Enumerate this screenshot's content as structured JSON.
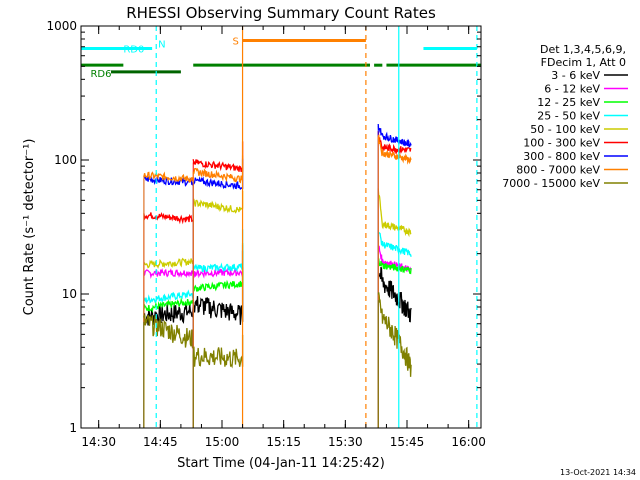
{
  "chart_data": {
    "type": "line",
    "title": "RHESSI Observing Summary Count Rates",
    "xlabel": "Start Time (04-Jan-11 14:25:42)",
    "ylabel": "Count Rate (s⁻¹ detector⁻¹)",
    "ylim": [
      1,
      1000
    ],
    "y_scale": "log",
    "xlim": [
      "14:25:42",
      "16:03:00"
    ],
    "x_ticks": [
      "14:30",
      "14:45",
      "15:00",
      "15:15",
      "15:30",
      "15:45",
      "16:00"
    ],
    "y_ticks": [
      "1",
      "10",
      "100",
      "1000"
    ],
    "footer": "13-Oct-2021 14:34",
    "legend": {
      "placement": "right",
      "header": [
        "Det 1,3,4,5,6,9,",
        "FDecim 1, Att 0"
      ],
      "entries": [
        {
          "label": "3 - 6 keV",
          "color": "#000000"
        },
        {
          "label": "6 - 12 keV",
          "color": "#ff00ff"
        },
        {
          "label": "12 - 25 keV",
          "color": "#00ff00"
        },
        {
          "label": "25 - 50 keV",
          "color": "#00ffff"
        },
        {
          "label": "50 - 100 keV",
          "color": "#cccc00"
        },
        {
          "label": "100 - 300 keV",
          "color": "#ff0000"
        },
        {
          "label": "300 - 800 keV",
          "color": "#0000ff"
        },
        {
          "label": "800 - 7000 keV",
          "color": "#ff8000"
        },
        {
          "label": "7000 - 15000 keV",
          "color": "#808000"
        }
      ]
    },
    "segments": [
      {
        "start": "14:41",
        "end": "14:53",
        "values": [
          6.8,
          14.3,
          7.8,
          9.0,
          16.5,
          39,
          72,
          77,
          6.2
        ],
        "end_values": [
          7.5,
          14.5,
          8.8,
          10,
          17.5,
          36,
          68,
          72,
          4.6
        ]
      },
      {
        "start": "14:53",
        "end": "15:05",
        "values": [
          8.5,
          14.3,
          11,
          15.5,
          48,
          96,
          70,
          82,
          3.5
        ],
        "end_values": [
          7,
          14.5,
          12,
          16,
          42,
          86,
          64,
          72,
          3.3
        ]
      },
      {
        "start": "15:38",
        "end": "15:46",
        "values": [
          13,
          18,
          16.5,
          24,
          34,
          125,
          155,
          115,
          7.2
        ],
        "end_values": [
          7,
          15,
          15,
          20,
          29,
          118,
          130,
          100,
          2.8
        ],
        "peak_values": [
          15,
          23,
          18,
          30,
          60,
          160,
          180,
          150,
          9
        ]
      }
    ],
    "annotations": {
      "bars": [
        {
          "label": "RD0",
          "color": "#00ffff",
          "y": 680,
          "ranges": [
            [
              "14:25:42",
              "14:43"
            ],
            [
              "15:49",
              "16:02"
            ]
          ]
        },
        {
          "label": "RD6",
          "color": "#008000",
          "y": 510,
          "ranges": [
            [
              "14:25:42",
              "14:36"
            ],
            [
              "14:53",
              "15:36"
            ],
            [
              "15:37",
              "15:39"
            ],
            [
              "15:40",
              "16:03"
            ]
          ]
        },
        {
          "label": "",
          "color": "#006400",
          "y": 455,
          "ranges": [
            [
              "14:33",
              "14:50"
            ]
          ]
        },
        {
          "label": "S",
          "color": "#ff8000",
          "y": 780,
          "ranges": [
            [
              "15:05",
              "15:35"
            ]
          ]
        }
      ],
      "markers": [
        {
          "label": "N",
          "color": "#00ffff",
          "time": "14:43"
        }
      ],
      "vlines": [
        {
          "time": "14:44",
          "color": "#00ffff",
          "style": "dashed"
        },
        {
          "time": "15:05",
          "color": "#ff8000",
          "style": "solid"
        },
        {
          "time": "15:35",
          "color": "#ff8000",
          "style": "dashed"
        },
        {
          "time": "15:43",
          "color": "#00ffff",
          "style": "solid"
        },
        {
          "time": "16:02",
          "color": "#00ffff",
          "style": "dashed"
        }
      ]
    }
  }
}
